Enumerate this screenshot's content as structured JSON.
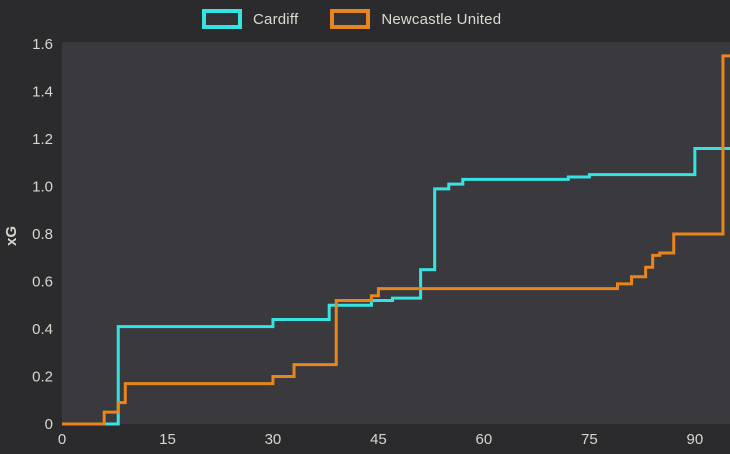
{
  "page_bg": "#2b2b2e",
  "plot_bg": "#3a3a3e",
  "text_color": "#d9d6cf",
  "legend": {
    "items": [
      {
        "label": "Cardiff",
        "color": "#35e3e3"
      },
      {
        "label": "Newcastle United",
        "color": "#e8851c"
      }
    ]
  },
  "chart_data": {
    "type": "line",
    "step": "after",
    "title": "",
    "xlabel": "",
    "ylabel": "xG",
    "xlim": [
      0,
      95
    ],
    "ylim": [
      0,
      1.6
    ],
    "x_ticks": [
      0,
      15,
      30,
      45,
      60,
      75,
      90
    ],
    "y_ticks": [
      0,
      0.2,
      0.4,
      0.6,
      0.8,
      1.0,
      1.2,
      1.4,
      1.6
    ],
    "grid": false,
    "legend_position": "top",
    "series": [
      {
        "name": "Cardiff",
        "color": "#35e3e3",
        "points": [
          [
            0,
            0
          ],
          [
            8,
            0.41
          ],
          [
            30,
            0.44
          ],
          [
            38,
            0.5
          ],
          [
            44,
            0.52
          ],
          [
            47,
            0.53
          ],
          [
            51,
            0.65
          ],
          [
            53,
            0.99
          ],
          [
            55,
            1.01
          ],
          [
            57,
            1.03
          ],
          [
            72,
            1.04
          ],
          [
            75,
            1.05
          ],
          [
            90,
            1.16
          ],
          [
            95,
            1.16
          ]
        ]
      },
      {
        "name": "Newcastle United",
        "color": "#e8851c",
        "points": [
          [
            0,
            0
          ],
          [
            6,
            0.05
          ],
          [
            8,
            0.09
          ],
          [
            9,
            0.17
          ],
          [
            30,
            0.2
          ],
          [
            33,
            0.25
          ],
          [
            39,
            0.52
          ],
          [
            44,
            0.54
          ],
          [
            45,
            0.57
          ],
          [
            79,
            0.59
          ],
          [
            81,
            0.62
          ],
          [
            83,
            0.66
          ],
          [
            84,
            0.71
          ],
          [
            85,
            0.72
          ],
          [
            87,
            0.8
          ],
          [
            94,
            1.55
          ],
          [
            95,
            1.55
          ]
        ]
      }
    ]
  }
}
